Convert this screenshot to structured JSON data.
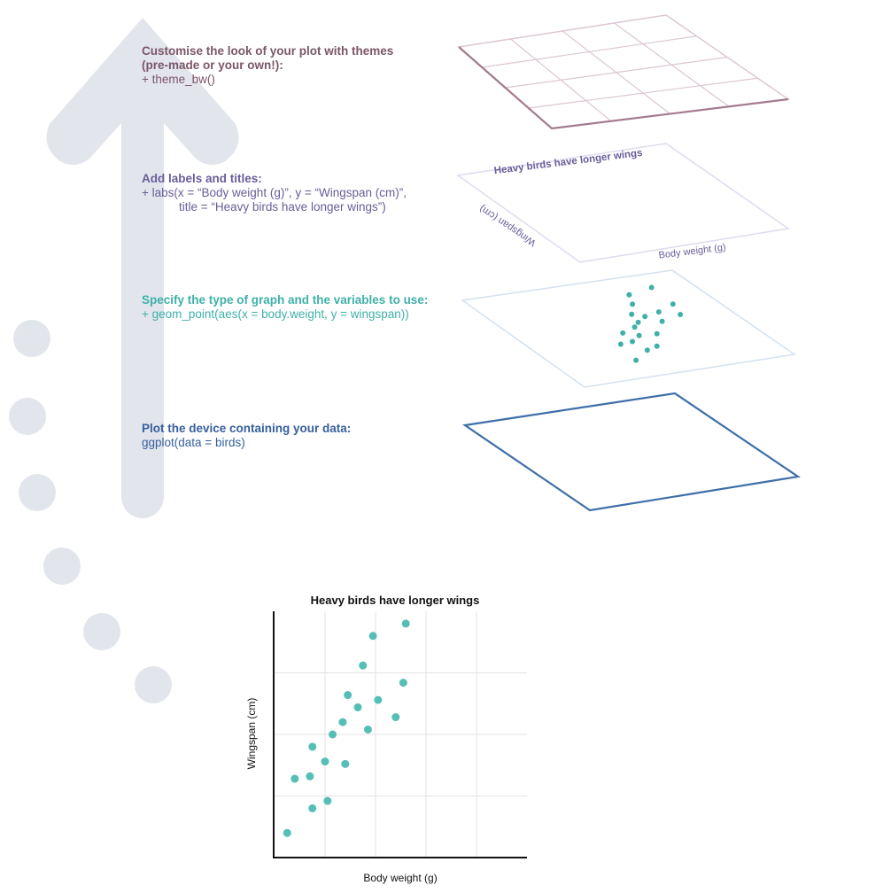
{
  "colors": {
    "theme": "#7b5668",
    "labels": "#6a5d99",
    "geom": "#3fb0a8",
    "data": "#365f9c",
    "arrow": "#e2e5ec",
    "point": "#55bfb5"
  },
  "layers": {
    "theme": {
      "heading": "Customise the look of your plot with themes",
      "heading2": "(pre-made or your own!):",
      "code": "+ theme_bw()"
    },
    "labels": {
      "heading": "Add labels and titles:",
      "code1": "+ labs(x = “Body weight (g)”, y = “Wingspan (cm)”,",
      "code2": "title = “Heavy birds have longer wings”)",
      "plane_title": "Heavy birds have longer wings",
      "plane_ylabel": "Wingspan (cm)",
      "plane_xlabel": "Body weight (g)"
    },
    "geom": {
      "heading": "Specify the type of graph and the variables to use:",
      "code": "+ geom_point(aes(x = body.weight, y = wingspan))"
    },
    "data": {
      "heading": "Plot the device containing your data:",
      "code": "ggplot(data = birds)"
    }
  },
  "chart_data": {
    "type": "scatter",
    "title": "Heavy birds have longer wings",
    "xlabel": "Body weight (g)",
    "ylabel": "Wingspan (cm)",
    "xlim": [
      0,
      10
    ],
    "ylim": [
      0,
      10
    ],
    "grid": true,
    "x": [
      0.5,
      0.8,
      1.4,
      1.5,
      1.5,
      2.0,
      2.1,
      2.3,
      2.7,
      2.8,
      2.9,
      3.3,
      3.5,
      3.7,
      3.9,
      4.1,
      4.8,
      5.1,
      5.2
    ],
    "y": [
      1.0,
      3.2,
      3.3,
      2.0,
      4.5,
      3.9,
      2.3,
      5.0,
      5.5,
      3.8,
      6.6,
      6.1,
      7.8,
      5.2,
      9.0,
      6.4,
      5.7,
      7.1,
      9.5
    ]
  }
}
